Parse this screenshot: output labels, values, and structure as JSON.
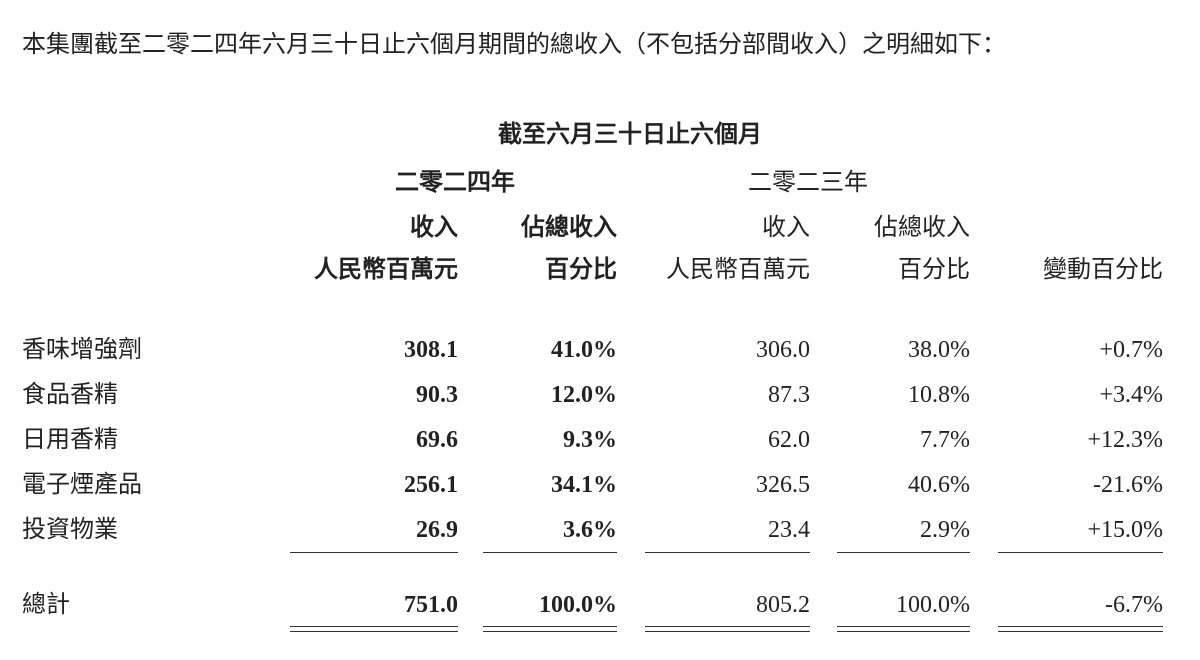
{
  "intro": "本集團截至二零二四年六月三十日止六個月期間的總收入（不包括分部間收入）之明細如下：",
  "header": {
    "period": "截至六月三十日止六個月",
    "year2024": "二零二四年",
    "year2023": "二零二三年",
    "columns": [
      [
        "收入",
        "人民幣百萬元"
      ],
      [
        "佔總收入",
        "百分比"
      ],
      [
        "收入",
        "人民幣百萬元"
      ],
      [
        "佔總收入",
        "百分比"
      ],
      [
        "",
        "變動百分比"
      ]
    ]
  },
  "rows": [
    {
      "label": "香味增強劑",
      "cells": [
        "308.1",
        "41.0%",
        "306.0",
        "38.0%",
        "+0.7%"
      ]
    },
    {
      "label": "食品香精",
      "cells": [
        "90.3",
        "12.0%",
        "87.3",
        "10.8%",
        "+3.4%"
      ]
    },
    {
      "label": "日用香精",
      "cells": [
        "69.6",
        "9.3%",
        "62.0",
        "7.7%",
        "+12.3%"
      ]
    },
    {
      "label": "電子煙產品",
      "cells": [
        "256.1",
        "34.1%",
        "326.5",
        "40.6%",
        "-21.6%"
      ]
    },
    {
      "label": "投資物業",
      "cells": [
        "26.9",
        "3.6%",
        "23.4",
        "2.9%",
        "+15.0%"
      ]
    }
  ],
  "total": {
    "label": "總計",
    "cells": [
      "751.0",
      "100.0%",
      "805.2",
      "100.0%",
      "-6.7%"
    ]
  }
}
